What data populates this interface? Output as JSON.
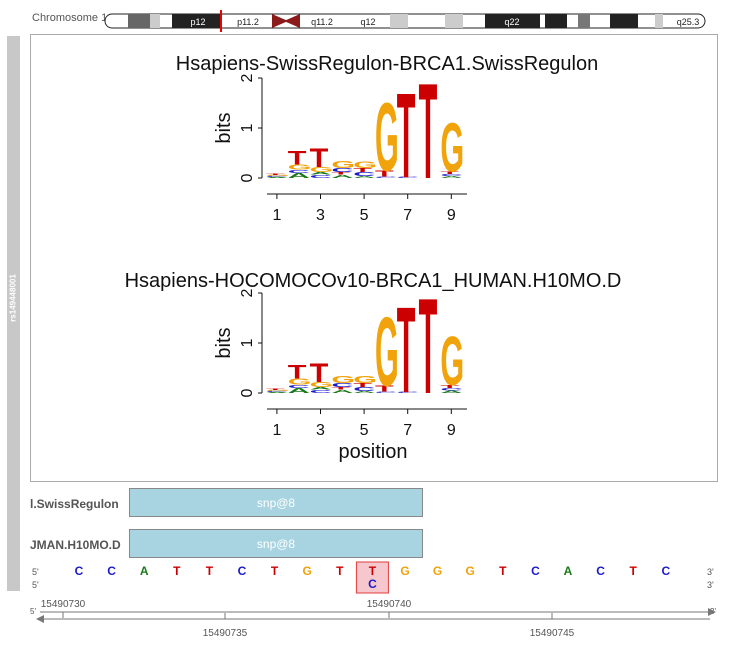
{
  "ideogram": {
    "label": "Chromosome 1",
    "bands": [
      "p12",
      "p11.2",
      "q11.2",
      "q12",
      "q22",
      "q25.3"
    ]
  },
  "side_panel": {
    "label": "rs149448001"
  },
  "chart_data": [
    {
      "type": "sequence-logo",
      "title": "Hsapiens-SwissRegulon-BRCA1.SwissRegulon",
      "ylabel": "bits",
      "xlabel": "",
      "ylim": [
        0,
        2
      ],
      "yticks": [
        0,
        1,
        2
      ],
      "xticks": [
        1,
        3,
        5,
        7,
        9
      ],
      "positions": [
        {
          "pos": 1,
          "stack": [
            {
              "base": "A",
              "bits": 0.02
            },
            {
              "base": "C",
              "bits": 0.02
            },
            {
              "base": "G",
              "bits": 0.02
            },
            {
              "base": "T",
              "bits": 0.02
            }
          ]
        },
        {
          "pos": 2,
          "stack": [
            {
              "base": "A",
              "bits": 0.1
            },
            {
              "base": "C",
              "bits": 0.07
            },
            {
              "base": "G",
              "bits": 0.1
            },
            {
              "base": "T",
              "bits": 0.28
            }
          ]
        },
        {
          "pos": 3,
          "stack": [
            {
              "base": "C",
              "bits": 0.07
            },
            {
              "base": "A",
              "bits": 0.05
            },
            {
              "base": "G",
              "bits": 0.1
            },
            {
              "base": "T",
              "bits": 0.38
            }
          ]
        },
        {
          "pos": 4,
          "stack": [
            {
              "base": "A",
              "bits": 0.07
            },
            {
              "base": "T",
              "bits": 0.05
            },
            {
              "base": "C",
              "bits": 0.08
            },
            {
              "base": "G",
              "bits": 0.14
            }
          ]
        },
        {
          "pos": 5,
          "stack": [
            {
              "base": "A",
              "bits": 0.04
            },
            {
              "base": "C",
              "bits": 0.08
            },
            {
              "base": "T",
              "bits": 0.08
            },
            {
              "base": "G",
              "bits": 0.13
            }
          ]
        },
        {
          "pos": 6,
          "stack": [
            {
              "base": "C",
              "bits": 0.03
            },
            {
              "base": "T",
              "bits": 0.12
            },
            {
              "base": "G",
              "bits": 1.4
            }
          ]
        },
        {
          "pos": 7,
          "stack": [
            {
              "base": "C",
              "bits": 0.02
            },
            {
              "base": "T",
              "bits": 1.74
            }
          ]
        },
        {
          "pos": 8,
          "stack": [
            {
              "base": "T",
              "bits": 1.96
            }
          ]
        },
        {
          "pos": 9,
          "stack": [
            {
              "base": "A",
              "bits": 0.04
            },
            {
              "base": "C",
              "bits": 0.04
            },
            {
              "base": "T",
              "bits": 0.05
            },
            {
              "base": "G",
              "bits": 1.0
            }
          ]
        }
      ]
    },
    {
      "type": "sequence-logo",
      "title": "Hsapiens-HOCOMOCOv10-BRCA1_HUMAN.H10MO.D",
      "ylabel": "bits",
      "xlabel": "position",
      "ylim": [
        0,
        2
      ],
      "yticks": [
        0,
        1,
        2
      ],
      "xticks": [
        1,
        3,
        5,
        7,
        9
      ],
      "positions": [
        {
          "pos": 1,
          "stack": [
            {
              "base": "A",
              "bits": 0.02
            },
            {
              "base": "C",
              "bits": 0.02
            },
            {
              "base": "G",
              "bits": 0.02
            },
            {
              "base": "T",
              "bits": 0.02
            }
          ]
        },
        {
          "pos": 2,
          "stack": [
            {
              "base": "A",
              "bits": 0.1
            },
            {
              "base": "C",
              "bits": 0.07
            },
            {
              "base": "G",
              "bits": 0.12
            },
            {
              "base": "T",
              "bits": 0.28
            }
          ]
        },
        {
          "pos": 3,
          "stack": [
            {
              "base": "C",
              "bits": 0.07
            },
            {
              "base": "A",
              "bits": 0.05
            },
            {
              "base": "G",
              "bits": 0.1
            },
            {
              "base": "T",
              "bits": 0.38
            }
          ]
        },
        {
          "pos": 4,
          "stack": [
            {
              "base": "A",
              "bits": 0.07
            },
            {
              "base": "T",
              "bits": 0.05
            },
            {
              "base": "C",
              "bits": 0.08
            },
            {
              "base": "G",
              "bits": 0.14
            }
          ]
        },
        {
          "pos": 5,
          "stack": [
            {
              "base": "A",
              "bits": 0.04
            },
            {
              "base": "C",
              "bits": 0.08
            },
            {
              "base": "T",
              "bits": 0.08
            },
            {
              "base": "G",
              "bits": 0.14
            }
          ]
        },
        {
          "pos": 6,
          "stack": [
            {
              "base": "C",
              "bits": 0.03
            },
            {
              "base": "T",
              "bits": 0.12
            },
            {
              "base": "G",
              "bits": 1.42
            }
          ]
        },
        {
          "pos": 7,
          "stack": [
            {
              "base": "C",
              "bits": 0.02
            },
            {
              "base": "T",
              "bits": 1.76
            }
          ]
        },
        {
          "pos": 8,
          "stack": [
            {
              "base": "T",
              "bits": 1.96
            }
          ]
        },
        {
          "pos": 9,
          "stack": [
            {
              "base": "A",
              "bits": 0.05
            },
            {
              "base": "C",
              "bits": 0.05
            },
            {
              "base": "T",
              "bits": 0.06
            },
            {
              "base": "G",
              "bits": 1.0
            }
          ]
        }
      ]
    }
  ],
  "tracks": [
    {
      "label": "l.SwissRegulon",
      "feature": "snp@8"
    },
    {
      "label": "JMAN.H10MO.D",
      "feature": "snp@8"
    }
  ],
  "sequence": {
    "end_label_left": "5'",
    "end_label_right": "3'",
    "bases": [
      "C",
      "C",
      "A",
      "T",
      "T",
      "C",
      "T",
      "G",
      "T",
      "T",
      "G",
      "G",
      "G",
      "T",
      "C",
      "A",
      "C",
      "T",
      "C"
    ],
    "snp_index": 9,
    "snp_ref": "T",
    "snp_alt": "C"
  },
  "axis": {
    "top_labels": [
      "15490730",
      "15490740"
    ],
    "bottom_labels": [
      "15490735",
      "15490745"
    ],
    "end_left": "5'",
    "end_right": "3'"
  },
  "colors": {
    "A": "#1a7a1a",
    "C": "#1a1acc",
    "G": "#f0a30a",
    "T": "#cc0000",
    "track_fill": "#a8d4e2",
    "snp_fill": "#f6c7cc",
    "snp_border": "#e23b3b",
    "side_panel": "#c8c8c8"
  }
}
